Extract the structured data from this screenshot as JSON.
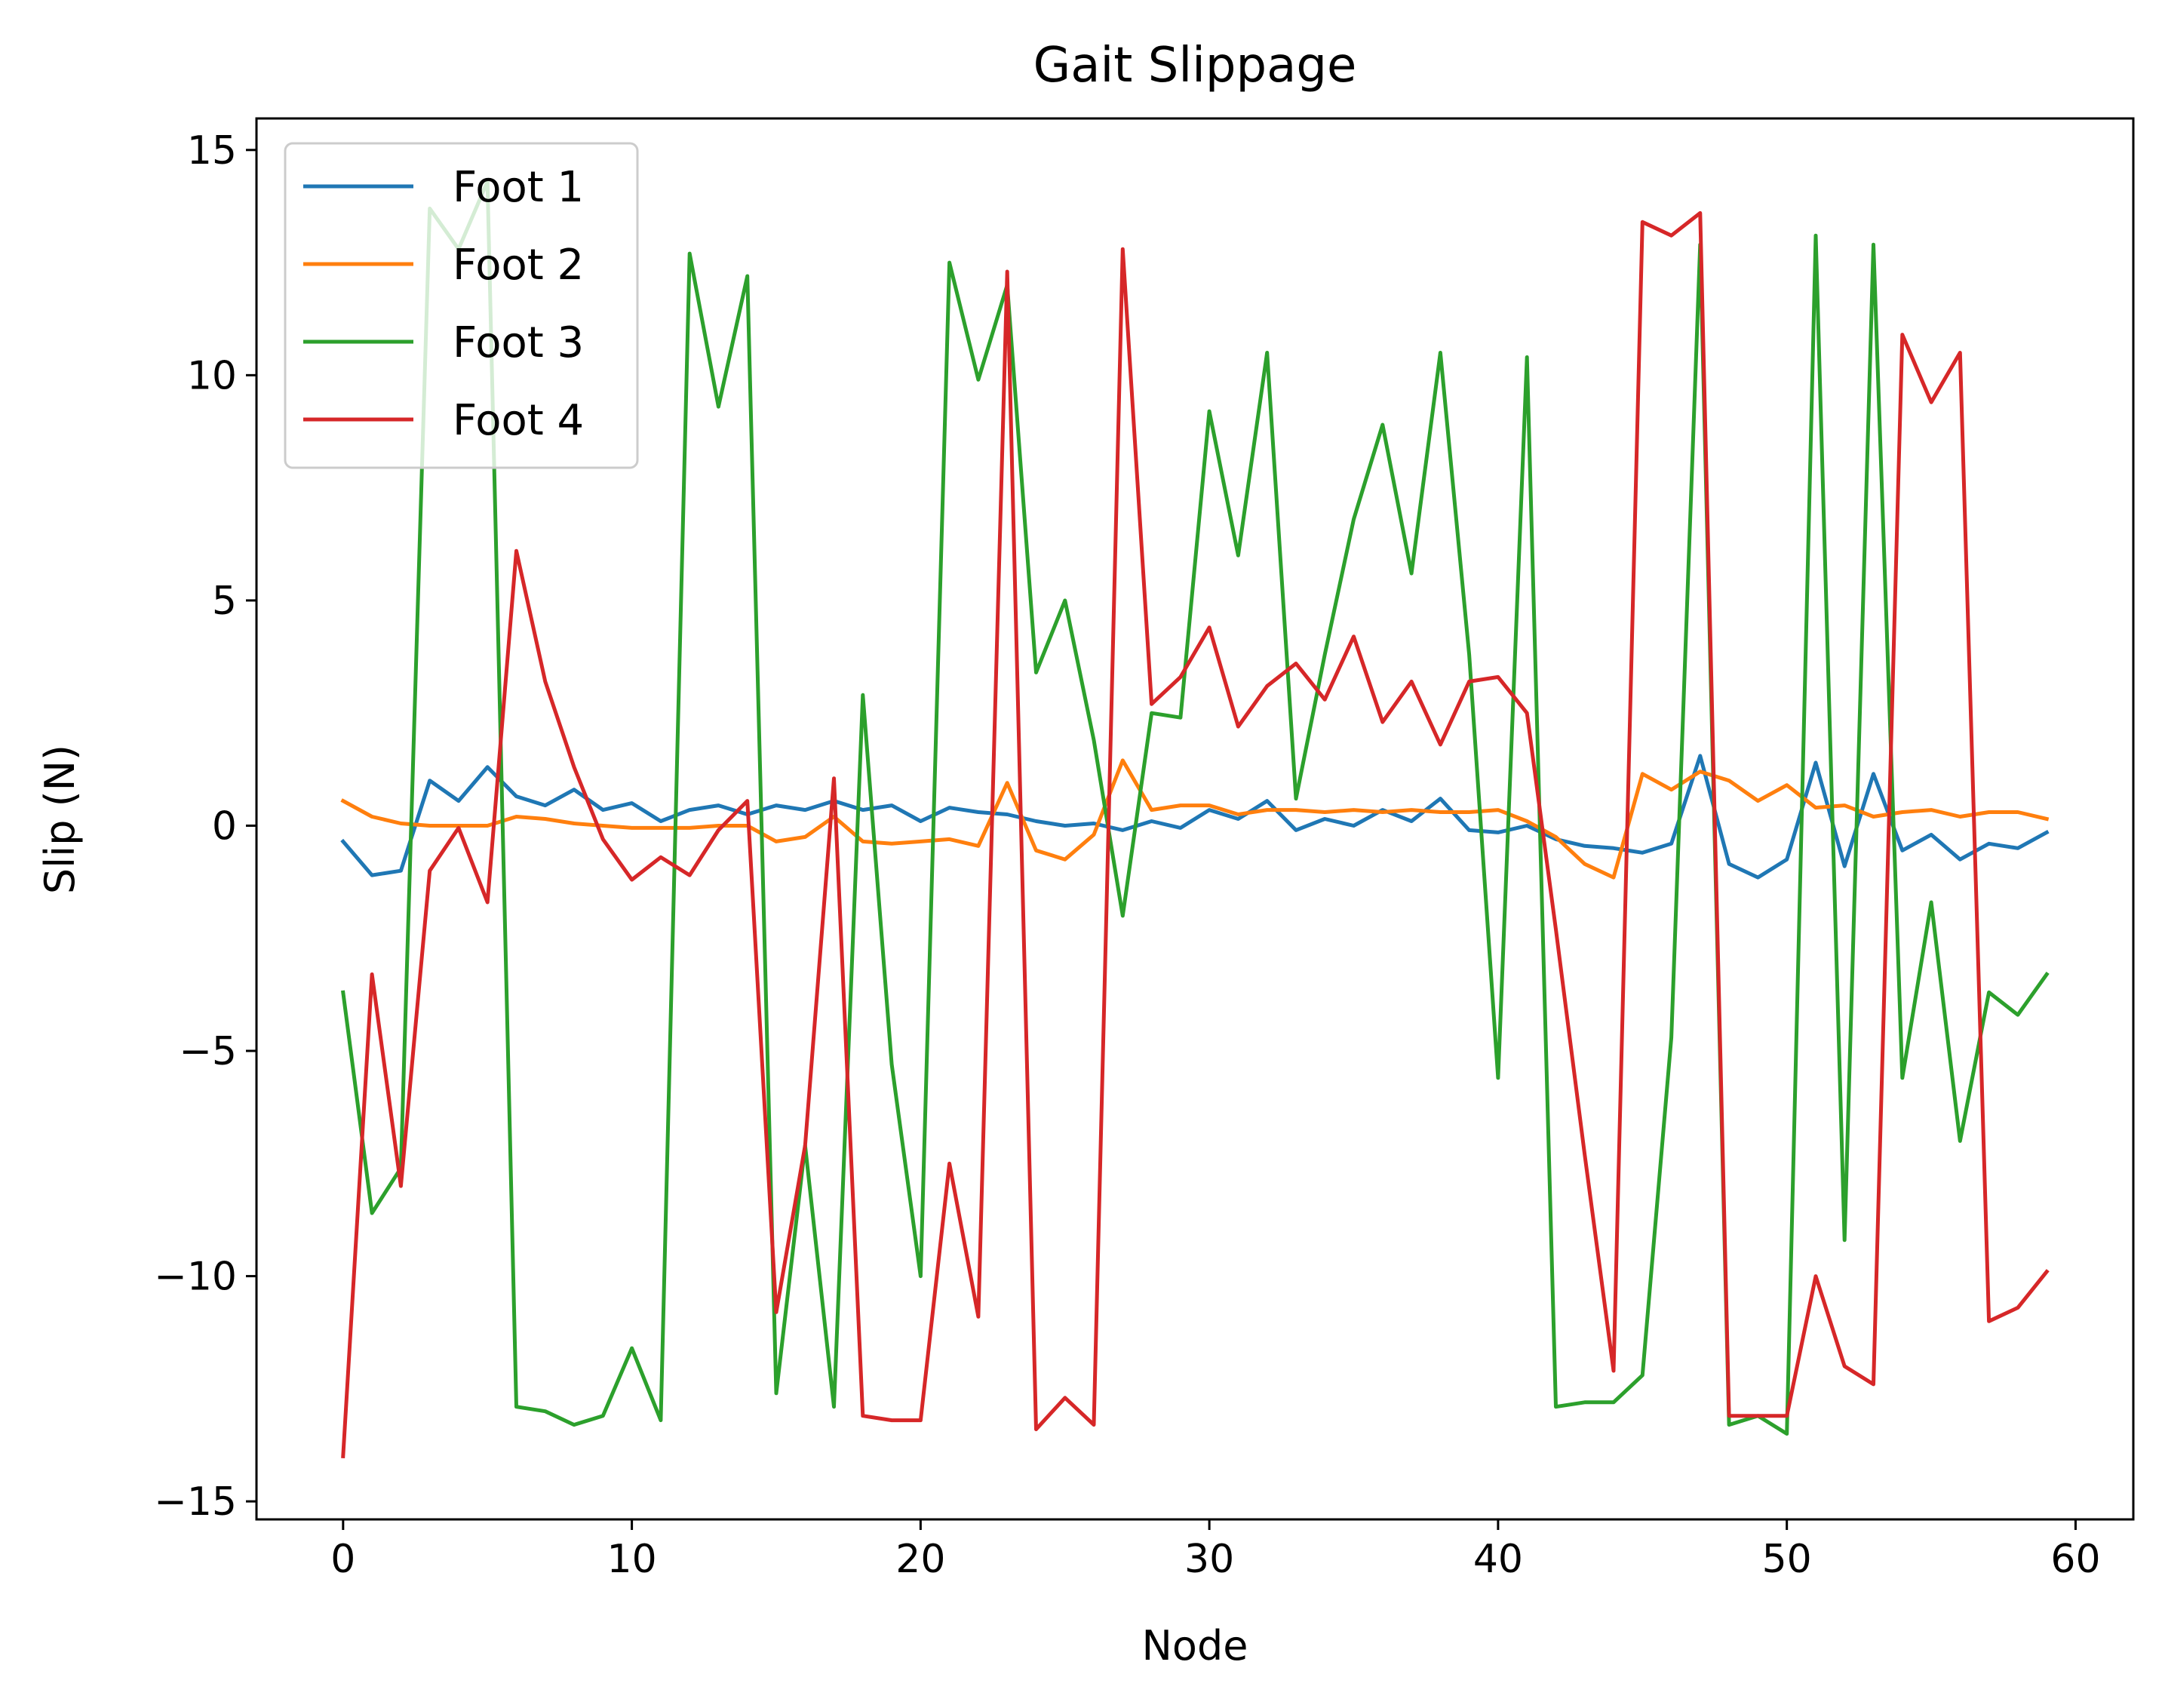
{
  "chart_data": {
    "type": "line",
    "title": "Gait Slippage",
    "xlabel": "Node",
    "ylabel": "Slip (N)",
    "xlim": [
      -3,
      62
    ],
    "ylim": [
      -15.4,
      15.7
    ],
    "xticks": [
      0,
      10,
      20,
      30,
      40,
      50,
      60
    ],
    "yticks": [
      -15,
      -10,
      -5,
      0,
      5,
      10,
      15
    ],
    "ytick_labels": [
      "−15",
      "−10",
      "−5",
      "0",
      "5",
      "10",
      "15"
    ],
    "legend_position": "top-left",
    "grid": false,
    "series": [
      {
        "name": "Foot 1",
        "color": "#1f77b4",
        "values": [
          -0.35,
          -1.1,
          -1.0,
          1.0,
          0.55,
          1.3,
          0.65,
          0.45,
          0.8,
          0.35,
          0.5,
          0.1,
          0.35,
          0.45,
          0.25,
          0.45,
          0.35,
          0.55,
          0.35,
          0.45,
          0.1,
          0.4,
          0.3,
          0.25,
          0.1,
          0.0,
          0.05,
          -0.1,
          0.1,
          -0.05,
          0.35,
          0.15,
          0.55,
          -0.1,
          0.15,
          0.0,
          0.35,
          0.1,
          0.6,
          -0.1,
          -0.15,
          0.0,
          -0.3,
          -0.45,
          -0.5,
          -0.6,
          -0.4,
          1.55,
          -0.85,
          -1.15,
          -0.75,
          1.4,
          -0.9,
          1.15,
          -0.55,
          -0.2,
          -0.75,
          -0.4,
          -0.5,
          -0.15
        ]
      },
      {
        "name": "Foot 2",
        "color": "#ff7f0e",
        "values": [
          0.55,
          0.2,
          0.05,
          0.0,
          0.0,
          0.0,
          0.2,
          0.15,
          0.05,
          0.0,
          -0.05,
          -0.05,
          -0.05,
          0.0,
          0.0,
          -0.35,
          -0.25,
          0.2,
          -0.35,
          -0.4,
          -0.35,
          -0.3,
          -0.45,
          0.95,
          -0.55,
          -0.75,
          -0.2,
          1.45,
          0.35,
          0.45,
          0.45,
          0.25,
          0.35,
          0.35,
          0.3,
          0.35,
          0.3,
          0.35,
          0.3,
          0.3,
          0.35,
          0.1,
          -0.25,
          -0.85,
          -1.15,
          1.15,
          0.8,
          1.2,
          1.0,
          0.55,
          0.9,
          0.4,
          0.45,
          0.2,
          0.3,
          0.35,
          0.2,
          0.3,
          0.3,
          0.15
        ]
      },
      {
        "name": "Foot 3",
        "color": "#2ca02c",
        "values": [
          -3.7,
          -8.6,
          -7.6,
          13.7,
          12.8,
          14.3,
          -12.9,
          -13.0,
          -13.3,
          -13.1,
          -11.6,
          -13.2,
          12.7,
          9.3,
          12.2,
          -12.6,
          -7.1,
          -12.9,
          2.9,
          -5.3,
          -10.0,
          12.5,
          9.9,
          12.0,
          3.4,
          5.0,
          1.9,
          -2.0,
          2.5,
          2.4,
          9.2,
          6.0,
          10.5,
          0.6,
          3.8,
          6.8,
          8.9,
          5.6,
          10.5,
          3.8,
          -5.6,
          10.4,
          -12.9,
          -12.8,
          -12.8,
          -12.2,
          -4.7,
          12.9,
          -13.3,
          -13.1,
          -13.5,
          13.1,
          -9.2,
          12.9,
          -5.6,
          -1.7,
          -7.0,
          -3.7,
          -4.2,
          -3.3
        ]
      },
      {
        "name": "Foot 4",
        "color": "#d62728",
        "values": [
          -14.0,
          -3.3,
          -8.0,
          -1.0,
          -0.05,
          -1.7,
          6.1,
          3.2,
          1.3,
          -0.3,
          -1.2,
          -0.7,
          -1.1,
          -0.1,
          0.55,
          -10.8,
          -7.1,
          1.05,
          -13.1,
          -13.2,
          -13.2,
          -7.5,
          -10.9,
          12.3,
          -13.4,
          -12.7,
          -13.3,
          12.8,
          2.7,
          3.3,
          4.4,
          2.2,
          3.1,
          3.6,
          2.8,
          4.2,
          2.3,
          3.2,
          1.8,
          3.2,
          3.3,
          2.5,
          -2.3,
          -7.3,
          -12.1,
          13.4,
          13.1,
          13.6,
          -13.1,
          -13.1,
          -13.1,
          -10.0,
          -12.0,
          -12.4,
          10.9,
          9.4,
          10.5,
          -11.0,
          -10.7,
          -9.9
        ]
      }
    ]
  }
}
